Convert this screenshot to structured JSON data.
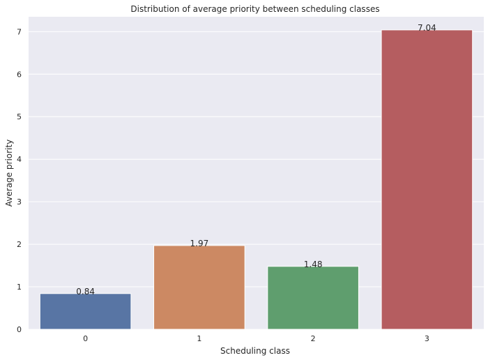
{
  "chart_data": {
    "type": "bar",
    "title": "Distribution of average priority between scheduling classes",
    "xlabel": "Scheduling class",
    "ylabel": "Average priority",
    "categories": [
      "0",
      "1",
      "2",
      "3"
    ],
    "values": [
      0.84,
      1.97,
      1.48,
      7.04
    ],
    "data_labels": [
      "0.84",
      "1.97",
      "1.48",
      "7.04"
    ],
    "yticks": [
      "0",
      "1",
      "2",
      "3",
      "4",
      "5",
      "6",
      "7"
    ],
    "ylim": [
      0,
      7.35
    ],
    "grid": true,
    "legend": "none",
    "colors": [
      "#5875a4",
      "#cc8963",
      "#5f9e6e",
      "#b55d60"
    ],
    "plot_background": "#eaeaf2"
  }
}
